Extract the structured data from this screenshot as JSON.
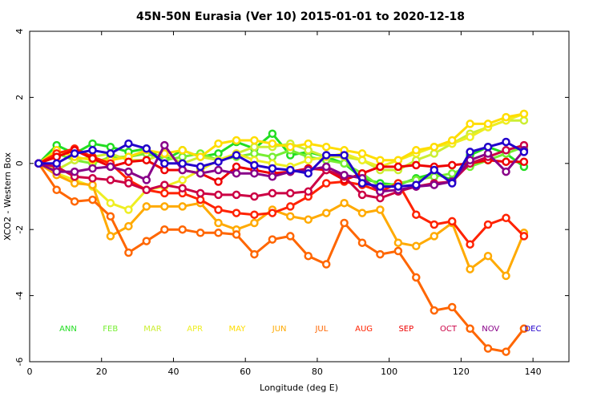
{
  "chart_data": {
    "type": "line",
    "title": "45N-50N Eurasia (Ver 10)   2015-01-01 to 2020-12-18",
    "xlabel": "Longitude (deg E)",
    "ylabel": "XCO2 - Western Box",
    "xlim": [
      0,
      150
    ],
    "ylim": [
      -6,
      4
    ],
    "xticks": [
      "0",
      "20",
      "40",
      "60",
      "80",
      "100",
      "120",
      "140"
    ],
    "yticks": [
      "-6",
      "-4",
      "-2",
      "0",
      "2",
      "4"
    ],
    "grid": false,
    "x": [
      2.5,
      7.5,
      12.5,
      17.5,
      22.5,
      27.5,
      32.5,
      37.5,
      42.5,
      47.5,
      52.5,
      57.5,
      62.5,
      67.5,
      72.5,
      77.5,
      82.5,
      87.5,
      92.5,
      97.5,
      102.5,
      107.5,
      112.5,
      117.5,
      122.5,
      127.5,
      132.5,
      137.5
    ],
    "series": [
      {
        "name": "ANN",
        "color": "#22dd22",
        "values": [
          0,
          0.55,
          0.3,
          0.6,
          0.5,
          0.35,
          0.45,
          0.1,
          0.4,
          0.2,
          0.3,
          0.65,
          0.45,
          0.9,
          0.25,
          0.35,
          0.2,
          0.0,
          -0.45,
          -0.6,
          -0.65,
          -0.45,
          -0.3,
          -0.5,
          0.25,
          0.5,
          0.3,
          -0.1
        ]
      },
      {
        "name": "FEB",
        "color": "#77ee33",
        "values": [
          0,
          0.3,
          0.1,
          0.0,
          0.2,
          0.2,
          0.3,
          0.1,
          0.2,
          0.3,
          0.1,
          0.2,
          0.3,
          0.2,
          0.4,
          0.2,
          0.1,
          0.0,
          -0.3,
          -0.7,
          -0.6,
          -0.5,
          -0.4,
          -0.3,
          -0.1,
          0.1,
          0.3,
          0.5
        ]
      },
      {
        "name": "MAR",
        "color": "#ccee33",
        "values": [
          0,
          -0.2,
          0.1,
          0.2,
          0.3,
          0.1,
          0.1,
          0.3,
          0.0,
          0.2,
          0.1,
          0.3,
          0.5,
          0.5,
          0.6,
          0.4,
          0.2,
          0.2,
          0.1,
          -0.2,
          -0.2,
          0.1,
          0.3,
          0.6,
          0.9,
          1.1,
          1.3,
          1.3
        ]
      },
      {
        "name": "APR",
        "color": "#eeee22",
        "values": [
          0,
          -0.3,
          -0.5,
          -0.7,
          -1.2,
          -1.4,
          -0.8,
          -0.7,
          -0.5,
          -0.2,
          0.1,
          0.3,
          0.1,
          0.0,
          -0.1,
          0.1,
          0.2,
          0.3,
          0.1,
          -0.1,
          0.1,
          0.3,
          0.5,
          0.6,
          0.8,
          1.1,
          1.3,
          1.5
        ]
      },
      {
        "name": "MAY",
        "color": "#ffdd00",
        "values": [
          0,
          0.4,
          0.2,
          0.1,
          0.1,
          0.2,
          0.4,
          0.3,
          0.4,
          0.2,
          0.6,
          0.7,
          0.7,
          0.6,
          0.5,
          0.6,
          0.5,
          0.4,
          0.3,
          0.1,
          0.1,
          0.4,
          0.5,
          0.7,
          1.2,
          1.2,
          1.4,
          1.5
        ]
      },
      {
        "name": "JUN",
        "color": "#ffaa00",
        "values": [
          0,
          -0.35,
          -0.6,
          -0.65,
          -2.2,
          -1.9,
          -1.3,
          -1.3,
          -1.3,
          -1.2,
          -1.8,
          -2.0,
          -1.8,
          -1.4,
          -1.6,
          -1.7,
          -1.5,
          -1.2,
          -1.5,
          -1.4,
          -2.4,
          -2.5,
          -2.2,
          -1.8,
          -3.2,
          -2.8,
          -3.4,
          -2.1
        ]
      },
      {
        "name": "JUL",
        "color": "#ff6600",
        "values": [
          0,
          -0.8,
          -1.15,
          -1.1,
          -1.6,
          -2.7,
          -2.35,
          -2.0,
          -2.0,
          -2.1,
          -2.1,
          -2.15,
          -2.75,
          -2.3,
          -2.2,
          -2.8,
          -3.05,
          -1.8,
          -2.4,
          -2.75,
          -2.65,
          -3.45,
          -4.45,
          -4.35,
          -5.0,
          -5.6,
          -5.7,
          -5.0
        ]
      },
      {
        "name": "AUG",
        "color": "#ff2200",
        "values": [
          0,
          0.3,
          0.45,
          0.2,
          0.0,
          -0.5,
          -0.8,
          -0.9,
          -0.9,
          -1.1,
          -1.4,
          -1.5,
          -1.55,
          -1.5,
          -1.3,
          -1.0,
          -0.6,
          -0.55,
          -0.65,
          -0.85,
          -0.6,
          -1.55,
          -1.85,
          -1.75,
          -2.45,
          -1.85,
          -1.65,
          -2.2
        ]
      },
      {
        "name": "SEP",
        "color": "#ee0000",
        "values": [
          0,
          0.2,
          0.4,
          0.15,
          -0.1,
          0.05,
          0.1,
          -0.2,
          -0.2,
          -0.3,
          -0.55,
          -0.1,
          -0.2,
          -0.3,
          -0.25,
          -0.15,
          -0.2,
          -0.5,
          -0.3,
          -0.1,
          -0.1,
          -0.05,
          -0.1,
          -0.05,
          0.0,
          0.1,
          0.05,
          0.05
        ]
      },
      {
        "name": "OCT",
        "color": "#cc0044",
        "values": [
          0,
          -0.1,
          -0.4,
          -0.45,
          -0.5,
          -0.6,
          -0.8,
          -0.65,
          -0.75,
          -0.9,
          -0.95,
          -0.95,
          -1.0,
          -0.9,
          -0.9,
          -0.85,
          -0.2,
          -0.4,
          -0.95,
          -1.05,
          -0.85,
          -0.7,
          -0.6,
          -0.55,
          0.0,
          0.2,
          0.4,
          0.55
        ]
      },
      {
        "name": "NOV",
        "color": "#880088",
        "values": [
          0,
          -0.25,
          -0.25,
          -0.15,
          -0.1,
          -0.25,
          -0.5,
          0.55,
          -0.2,
          -0.3,
          -0.2,
          -0.3,
          -0.3,
          -0.4,
          -0.25,
          -0.2,
          -0.1,
          -0.35,
          -0.45,
          -0.85,
          -0.8,
          -0.7,
          -0.65,
          -0.55,
          0.1,
          0.3,
          -0.25,
          0.4
        ]
      },
      {
        "name": "DEC",
        "color": "#2200cc",
        "values": [
          0,
          0.0,
          0.3,
          0.4,
          0.3,
          0.6,
          0.45,
          0.0,
          0.0,
          -0.1,
          0.05,
          0.25,
          -0.05,
          -0.15,
          -0.2,
          -0.3,
          0.25,
          0.25,
          -0.6,
          -0.7,
          -0.7,
          -0.65,
          -0.2,
          -0.6,
          0.35,
          0.5,
          0.65,
          0.35
        ]
      }
    ]
  }
}
